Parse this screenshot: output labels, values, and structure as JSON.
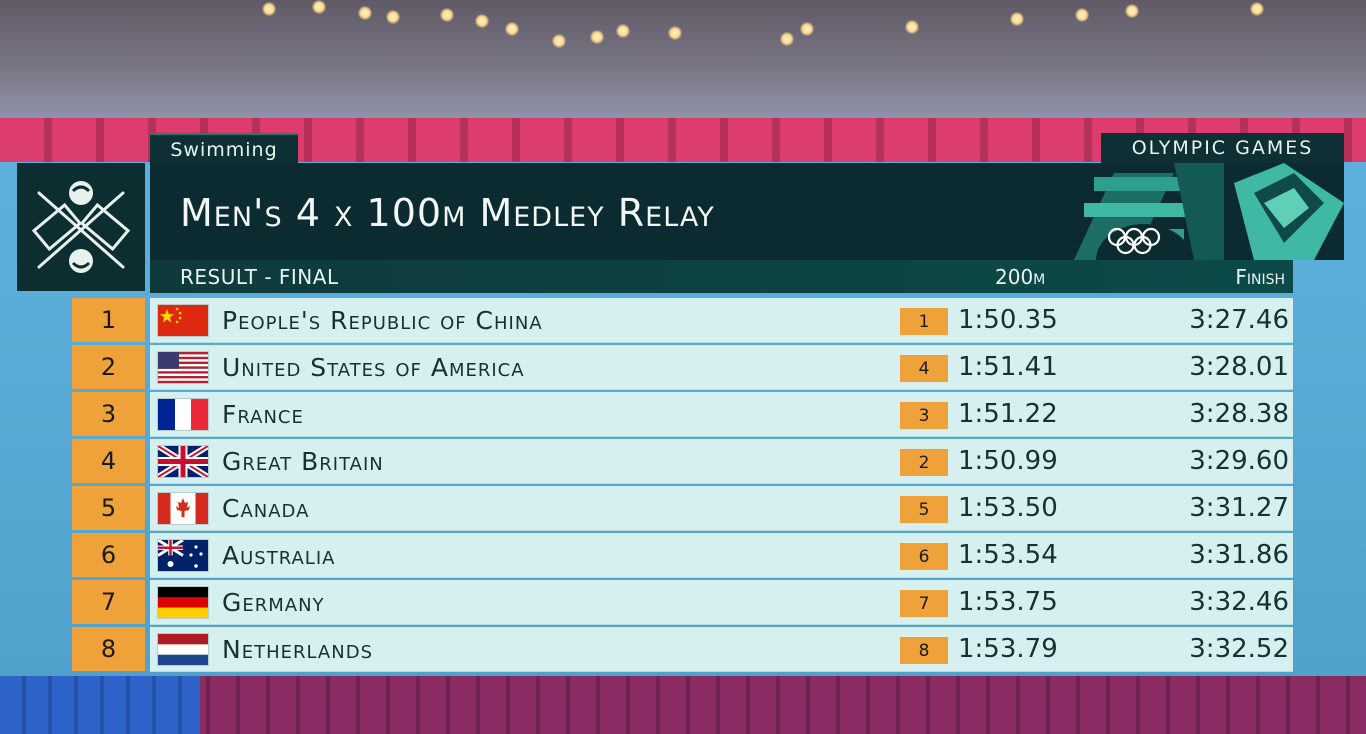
{
  "sport": "Swimming",
  "games": "Olympic Games",
  "event_title": "Men's 4 x 100m Medley Relay",
  "subheader": {
    "result": "RESULT - FINAL",
    "split_col": "200m",
    "finish_col": "Finish"
  },
  "results": [
    {
      "rank": "1",
      "country": "People's Republic of China",
      "flag": "china-flag-icon",
      "split_rank": "1",
      "split": "1:50.35",
      "finish": "3:27.46"
    },
    {
      "rank": "2",
      "country": "United States of America",
      "flag": "usa-flag-icon",
      "split_rank": "4",
      "split": "1:51.41",
      "finish": "3:28.01"
    },
    {
      "rank": "3",
      "country": "France",
      "flag": "france-flag-icon",
      "split_rank": "3",
      "split": "1:51.22",
      "finish": "3:28.38"
    },
    {
      "rank": "4",
      "country": "Great Britain",
      "flag": "great-britain-flag-icon",
      "split_rank": "2",
      "split": "1:50.99",
      "finish": "3:29.60"
    },
    {
      "rank": "5",
      "country": "Canada",
      "flag": "canada-flag-icon",
      "split_rank": "5",
      "split": "1:53.50",
      "finish": "3:31.27"
    },
    {
      "rank": "6",
      "country": "Australia",
      "flag": "australia-flag-icon",
      "split_rank": "6",
      "split": "1:53.54",
      "finish": "3:31.86"
    },
    {
      "rank": "7",
      "country": "Germany",
      "flag": "germany-flag-icon",
      "split_rank": "7",
      "split": "1:53.75",
      "finish": "3:32.46"
    },
    {
      "rank": "8",
      "country": "Netherlands",
      "flag": "netherlands-flag-icon",
      "split_rank": "8",
      "split": "1:53.79",
      "finish": "3:32.52"
    }
  ],
  "colors": {
    "rank_badge": "#f0a23a",
    "row_background": "#d6efef",
    "header_background": "#0c2b30",
    "brand_teal": "#3fb9a4"
  },
  "icons": {
    "pictogram": "swimming-pictogram-icon",
    "olympic_rings": "olympic-rings-icon"
  }
}
